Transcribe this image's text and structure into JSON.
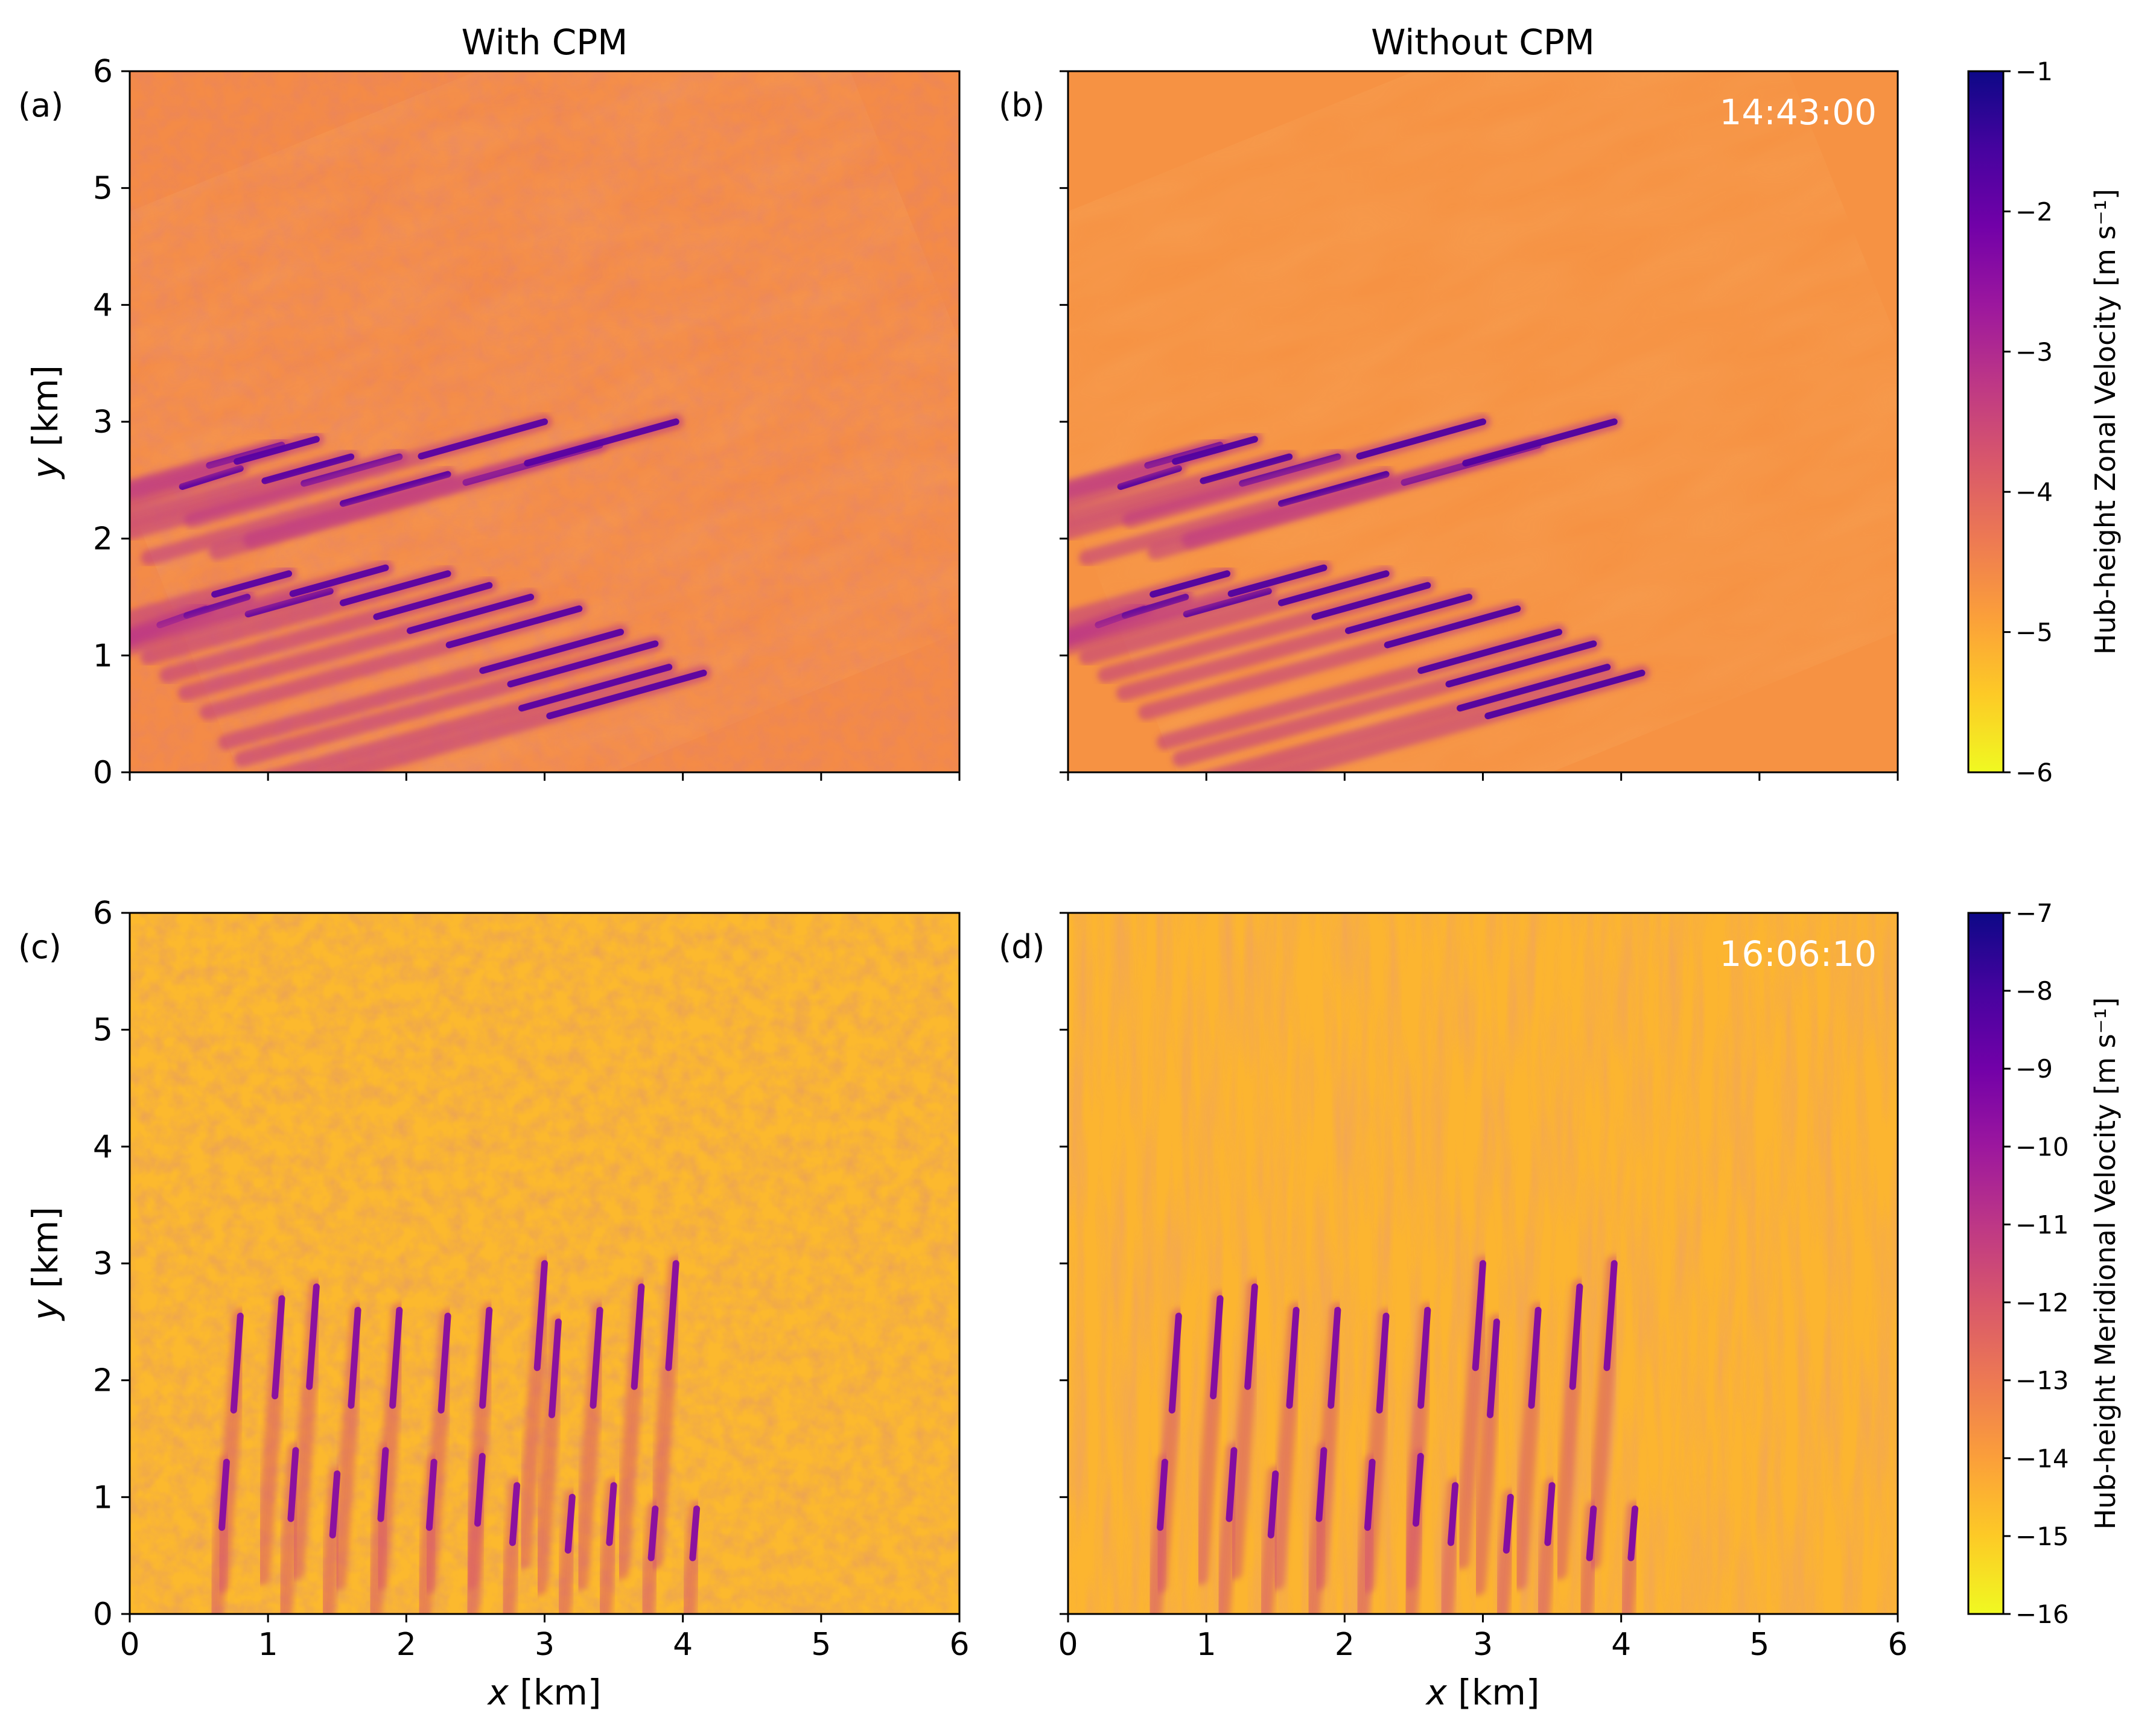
{
  "colors": {
    "plasma": [
      "#0d0887",
      "#46039f",
      "#7201a8",
      "#9c179e",
      "#bd3786",
      "#d8576b",
      "#ed7953",
      "#fb9f3a",
      "#fdca26",
      "#f0f921"
    ],
    "timestamp": "#ffffff"
  },
  "figure": {
    "column_titles": [
      "With CPM",
      "Without CPM"
    ],
    "timestamps": {
      "top": "14:43:00",
      "bottom": "16:06:10"
    }
  },
  "chart_data": [
    {
      "type": "heatmap",
      "panel": "(a)",
      "title": "With CPM",
      "xlabel": "",
      "ylabel": "y [km]",
      "xlim": [
        0,
        6
      ],
      "ylim": [
        0,
        6
      ],
      "xticks": [],
      "yticks": [
        0,
        1,
        2,
        3,
        4,
        5,
        6
      ],
      "field": "zonal",
      "background_value": -4.6,
      "wake_value": -1.8,
      "wake_sources": [
        [
          0.8,
          2.6
        ],
        [
          1.1,
          2.8
        ],
        [
          1.35,
          2.85
        ],
        [
          1.6,
          2.7
        ],
        [
          1.95,
          2.7
        ],
        [
          2.3,
          2.55
        ],
        [
          3.0,
          3.0
        ],
        [
          3.4,
          2.8
        ],
        [
          3.95,
          3.0
        ],
        [
          0.55,
          1.4
        ],
        [
          0.85,
          1.5
        ],
        [
          1.15,
          1.7
        ],
        [
          1.45,
          1.55
        ],
        [
          1.85,
          1.75
        ],
        [
          2.3,
          1.7
        ],
        [
          2.6,
          1.6
        ],
        [
          2.9,
          1.5
        ],
        [
          3.25,
          1.4
        ],
        [
          3.55,
          1.2
        ],
        [
          3.8,
          1.1
        ],
        [
          3.9,
          0.9
        ],
        [
          4.15,
          0.85
        ]
      ]
    },
    {
      "type": "heatmap",
      "panel": "(b)",
      "title": "Without CPM",
      "timestamp": "14:43:00",
      "xlabel": "",
      "ylabel": "",
      "xlim": [
        0,
        6
      ],
      "ylim": [
        0,
        6
      ],
      "xticks": [],
      "yticks": [],
      "field": "zonal",
      "background_value": -4.7,
      "wake_value": -1.7,
      "wake_sources": [
        [
          0.8,
          2.6
        ],
        [
          1.1,
          2.8
        ],
        [
          1.35,
          2.85
        ],
        [
          1.6,
          2.7
        ],
        [
          1.95,
          2.7
        ],
        [
          2.3,
          2.55
        ],
        [
          3.0,
          3.0
        ],
        [
          3.4,
          2.8
        ],
        [
          3.95,
          3.0
        ],
        [
          0.55,
          1.4
        ],
        [
          0.85,
          1.5
        ],
        [
          1.15,
          1.7
        ],
        [
          1.45,
          1.55
        ],
        [
          1.85,
          1.75
        ],
        [
          2.3,
          1.7
        ],
        [
          2.6,
          1.6
        ],
        [
          2.9,
          1.5
        ],
        [
          3.25,
          1.4
        ],
        [
          3.55,
          1.2
        ],
        [
          3.8,
          1.1
        ],
        [
          3.9,
          0.9
        ],
        [
          4.15,
          0.85
        ]
      ]
    },
    {
      "type": "heatmap",
      "panel": "(c)",
      "xlabel": "x [km]",
      "ylabel": "y [km]",
      "xlim": [
        0,
        6
      ],
      "ylim": [
        0,
        6
      ],
      "xticks": [
        0,
        1,
        2,
        3,
        4,
        5,
        6
      ],
      "yticks": [
        0,
        1,
        2,
        3,
        4,
        5,
        6
      ],
      "field": "meridional",
      "background_value": -14.6,
      "wake_value": -9.5,
      "wake_sources": [
        [
          0.8,
          2.55
        ],
        [
          1.1,
          2.7
        ],
        [
          1.35,
          2.8
        ],
        [
          1.65,
          2.6
        ],
        [
          1.95,
          2.6
        ],
        [
          2.3,
          2.55
        ],
        [
          2.6,
          2.6
        ],
        [
          3.0,
          3.0
        ],
        [
          3.1,
          2.5
        ],
        [
          3.4,
          2.6
        ],
        [
          3.7,
          2.8
        ],
        [
          3.95,
          3.0
        ],
        [
          0.7,
          1.3
        ],
        [
          1.2,
          1.4
        ],
        [
          1.5,
          1.2
        ],
        [
          1.85,
          1.4
        ],
        [
          2.2,
          1.3
        ],
        [
          2.55,
          1.35
        ],
        [
          2.8,
          1.1
        ],
        [
          3.2,
          1.0
        ],
        [
          3.5,
          1.1
        ],
        [
          3.8,
          0.9
        ],
        [
          4.1,
          0.9
        ]
      ]
    },
    {
      "type": "heatmap",
      "panel": "(d)",
      "timestamp": "16:06:10",
      "xlabel": "x [km]",
      "ylabel": "",
      "xlim": [
        0,
        6
      ],
      "ylim": [
        0,
        6
      ],
      "xticks": [
        0,
        1,
        2,
        3,
        4,
        5,
        6
      ],
      "yticks": [],
      "field": "meridional",
      "background_value": -14.5,
      "wake_value": -9.3,
      "wake_sources": [
        [
          0.8,
          2.55
        ],
        [
          1.1,
          2.7
        ],
        [
          1.35,
          2.8
        ],
        [
          1.65,
          2.6
        ],
        [
          1.95,
          2.6
        ],
        [
          2.3,
          2.55
        ],
        [
          2.6,
          2.6
        ],
        [
          3.0,
          3.0
        ],
        [
          3.1,
          2.5
        ],
        [
          3.4,
          2.6
        ],
        [
          3.7,
          2.8
        ],
        [
          3.95,
          3.0
        ],
        [
          0.7,
          1.3
        ],
        [
          1.2,
          1.4
        ],
        [
          1.5,
          1.2
        ],
        [
          1.85,
          1.4
        ],
        [
          2.2,
          1.3
        ],
        [
          2.55,
          1.35
        ],
        [
          2.8,
          1.1
        ],
        [
          3.2,
          1.0
        ],
        [
          3.5,
          1.1
        ],
        [
          3.8,
          0.9
        ],
        [
          4.1,
          0.9
        ]
      ]
    }
  ],
  "colorbars": [
    {
      "label": "Hub-height Zonal Velocity [m s⁻¹]",
      "range": [
        -6,
        -1
      ],
      "ticks": [
        "−1",
        "−2",
        "−3",
        "−4",
        "−5",
        "−6"
      ]
    },
    {
      "label": "Hub-height Meridional Velocity [m s⁻¹]",
      "range": [
        -16,
        -7
      ],
      "ticks": [
        "−7",
        "−8",
        "−9",
        "−10",
        "−11",
        "−12",
        "−13",
        "−14",
        "−15",
        "−16"
      ]
    }
  ]
}
